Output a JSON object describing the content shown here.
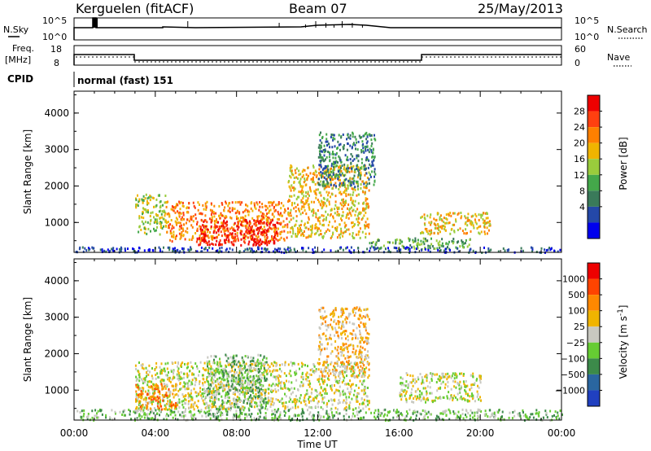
{
  "header": {
    "station": "Kerguelen (fitACF)",
    "beam": "Beam 07",
    "date": "25/May/2013"
  },
  "top_panels": {
    "nsky_label": "N.Sky",
    "nsky_ticks": [
      "10^5",
      "10^0"
    ],
    "nsearch_label": "N.Search",
    "nsearch_ticks": [
      "10^5",
      "10^0"
    ],
    "freq_label": "Freq.",
    "freq_unit": "[MHz]",
    "freq_ticks": [
      "18",
      "8"
    ],
    "nave_label": "Nave",
    "nave_ticks": [
      "60",
      "0"
    ],
    "cpid_label": "CPID",
    "cpid_value": "normal (fast) 151"
  },
  "chart_data": [
    {
      "type": "heatmap",
      "panel": "power",
      "xlabel": "Time UT",
      "ylabel": "Slant Range [km]",
      "xlim_hours": [
        0,
        24
      ],
      "ylim_km": [
        180,
        4600
      ],
      "x_ticks": [
        "00:00",
        "04:00",
        "08:00",
        "12:00",
        "16:00",
        "20:00",
        "00:00"
      ],
      "y_ticks": [
        "1000",
        "2000",
        "3000",
        "4000"
      ],
      "colorbar": {
        "label": "Power [dB]",
        "ticks": [
          "28",
          "24",
          "20",
          "16",
          "12",
          "8",
          "4"
        ],
        "colors": [
          "#0000ee",
          "#2448a8",
          "#3a7a5a",
          "#44a84a",
          "#9acc3c",
          "#f0b400",
          "#ff8000",
          "#ff4010",
          "#ee0000"
        ]
      },
      "regions": [
        {
          "t0": 3.0,
          "t1": 4.5,
          "r0": 700,
          "r1": 1800,
          "level": 4
        },
        {
          "t0": 4.5,
          "t1": 10.5,
          "r0": 500,
          "r1": 1600,
          "level": 6
        },
        {
          "t0": 6.0,
          "t1": 10.0,
          "r0": 400,
          "r1": 1100,
          "level": 8
        },
        {
          "t0": 10.5,
          "t1": 14.5,
          "r0": 600,
          "r1": 2600,
          "level": 5
        },
        {
          "t0": 12.0,
          "t1": 14.8,
          "r0": 2000,
          "r1": 3500,
          "level": 2
        },
        {
          "t0": 14.5,
          "t1": 19.5,
          "r0": 300,
          "r1": 600,
          "level": 3
        },
        {
          "t0": 17.0,
          "t1": 20.5,
          "r0": 700,
          "r1": 1300,
          "level": 5
        },
        {
          "t0": 0.0,
          "t1": 24.0,
          "r0": 200,
          "r1": 350,
          "level": 1
        }
      ]
    },
    {
      "type": "heatmap",
      "panel": "velocity",
      "xlabel": "Time UT",
      "ylabel": "Slant Range [km]",
      "xlim_hours": [
        0,
        24
      ],
      "ylim_km": [
        180,
        4600
      ],
      "x_ticks": [
        "00:00",
        "04:00",
        "08:00",
        "12:00",
        "16:00",
        "20:00",
        "00:00"
      ],
      "y_ticks": [
        "1000",
        "2000",
        "3000",
        "4000"
      ],
      "colorbar": {
        "label": "Velocity [m s^-1]",
        "ticks": [
          "1000",
          "500",
          "100",
          "25",
          "−25",
          "−100",
          "−500",
          "−1000"
        ],
        "colors": [
          "#2040c0",
          "#2a66a0",
          "#3c8a4a",
          "#66cc33",
          "#c8c8c0",
          "#f0b400",
          "#ff8800",
          "#ff4400",
          "#ee0000"
        ]
      },
      "regions": [
        {
          "t0": 3.0,
          "t1": 14.5,
          "r0": 500,
          "r1": 1800,
          "level": 4
        },
        {
          "t0": 6.5,
          "t1": 9.5,
          "r0": 500,
          "r1": 2000,
          "level": 3
        },
        {
          "t0": 3.0,
          "t1": 5.0,
          "r0": 500,
          "r1": 1200,
          "level": 6
        },
        {
          "t0": 12.0,
          "t1": 14.5,
          "r0": 1400,
          "r1": 3300,
          "level": 5
        },
        {
          "t0": 16.0,
          "t1": 20.0,
          "r0": 700,
          "r1": 1500,
          "level": 4
        },
        {
          "t0": 0.0,
          "t1": 24.0,
          "r0": 200,
          "r1": 500,
          "level": 3
        }
      ]
    }
  ]
}
